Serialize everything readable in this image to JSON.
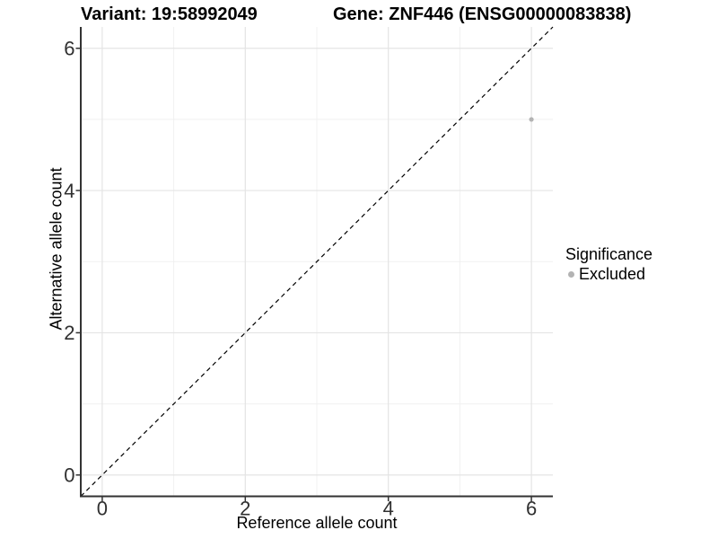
{
  "header": {
    "variant_title": "Variant: 19:58992049",
    "gene_title": "Gene: ZNF446 (ENSG00000083838)"
  },
  "chart_data": {
    "type": "scatter",
    "titles": [
      "Variant: 19:58992049",
      "Gene: ZNF446 (ENSG00000083838)"
    ],
    "xlabel": "Reference allele count",
    "ylabel": "Alternative allele count",
    "xlim": [
      -0.3,
      6.3
    ],
    "ylim": [
      -0.3,
      6.3
    ],
    "x_ticks": [
      0,
      2,
      4,
      6
    ],
    "y_ticks": [
      0,
      2,
      4,
      6
    ],
    "x_minor_breaks": [
      1,
      3,
      5
    ],
    "y_minor_breaks": [
      1,
      3,
      5
    ],
    "grid": "on",
    "identity_line": {
      "style": "dashed",
      "from": -0.3,
      "to": 6.3,
      "color": "#000000"
    },
    "series": [
      {
        "name": "Excluded",
        "color": "#b3b3b3",
        "points": [
          {
            "x": 6,
            "y": 5
          }
        ]
      }
    ],
    "legend": {
      "title": "Significance",
      "position": "right",
      "entries": [
        {
          "label": "Excluded",
          "color": "#b3b3b3"
        }
      ]
    },
    "colors": {
      "background": "#ffffff",
      "grid_major": "#e4e4e4",
      "grid_minor": "#f0f0f0",
      "axis_line": "#333333",
      "tick_text": "#303030",
      "point": "#b3b3b3"
    }
  }
}
